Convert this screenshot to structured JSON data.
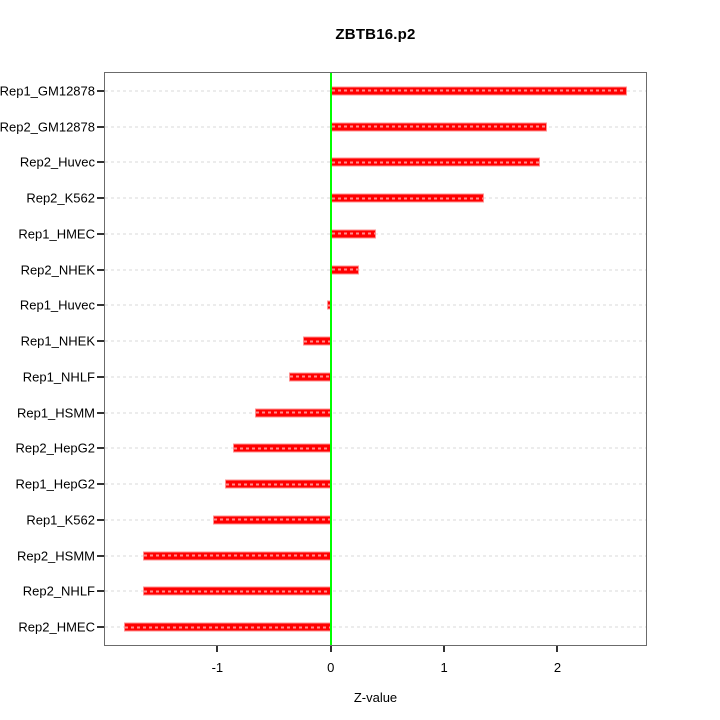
{
  "title": "ZBTB16.p2",
  "chart_data": {
    "type": "bar",
    "orientation": "horizontal",
    "title": "ZBTB16.p2",
    "xlabel": "Z-value",
    "ylabel": "",
    "categories": [
      "Rep1_GM12878",
      "Rep2_GM12878",
      "Rep2_Huvec",
      "Rep2_K562",
      "Rep1_HMEC",
      "Rep2_NHEK",
      "Rep1_Huvec",
      "Rep1_NHEK",
      "Rep1_NHLF",
      "Rep1_HSMM",
      "Rep2_HepG2",
      "Rep1_HepG2",
      "Rep1_K562",
      "Rep2_HSMM",
      "Rep2_NHLF",
      "Rep2_HMEC"
    ],
    "values": [
      2.62,
      1.91,
      1.85,
      1.36,
      0.4,
      0.25,
      -0.03,
      -0.25,
      -0.37,
      -0.67,
      -0.87,
      -0.94,
      -1.04,
      -1.66,
      -1.66,
      -1.83
    ],
    "xlim": [
      -2.0,
      2.79
    ],
    "xticks": [
      -1,
      0,
      1,
      2
    ],
    "xtick_labels": [
      "-1",
      "0",
      "1",
      "2"
    ],
    "zero_line_x": 0,
    "grid": "dotted horizontal line per category",
    "legend": "none"
  },
  "colors": {
    "bar_fill": "#ff0000",
    "bar_border": "#ff9090",
    "zero_line": "#00ff00",
    "gridline": "#d8d8d8",
    "axis_box": "#6b6b6b",
    "tick": "#333333",
    "text": "#000000",
    "background": "#ffffff"
  }
}
